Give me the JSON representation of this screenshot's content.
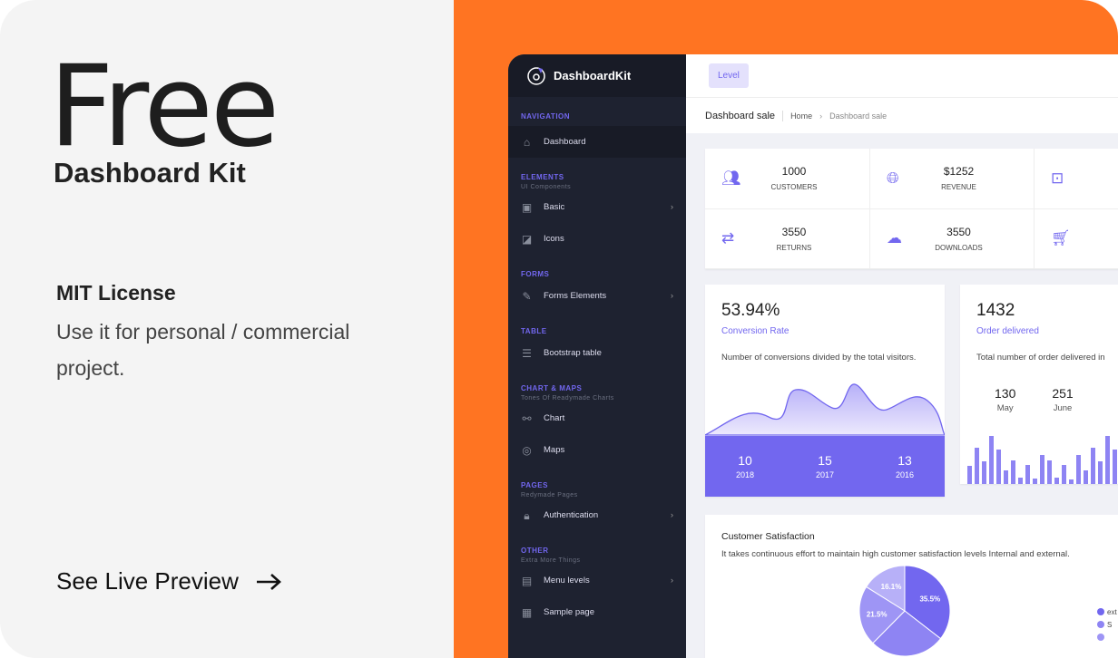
{
  "promo": {
    "title": "Free",
    "subtitle": "Dashboard Kit",
    "license": "MIT License",
    "usage": "Use it for personal / commercial project.",
    "cta": "See Live Preview",
    "cta_icon": "arrow-right-icon"
  },
  "colors": {
    "accent": "#7267ef",
    "orange": "#ff7422",
    "sidebar": "#1e2230"
  },
  "app": {
    "brand": "DashboardKit",
    "level_button": "Level",
    "breadcrumb": {
      "title": "Dashboard sale",
      "home": "Home",
      "current": "Dashboard sale"
    }
  },
  "sidebar": [
    {
      "type": "section",
      "label": "NAVIGATION"
    },
    {
      "type": "item",
      "label": "Dashboard",
      "icon": "home-icon",
      "glyph": "⌂",
      "active": true
    },
    {
      "type": "section",
      "label": "ELEMENTS",
      "caption": "UI Components"
    },
    {
      "type": "item",
      "label": "Basic",
      "icon": "briefcase-icon",
      "glyph": "▣",
      "chevron": true
    },
    {
      "type": "item",
      "label": "Icons",
      "icon": "icons-icon",
      "glyph": "◪"
    },
    {
      "type": "section",
      "label": "FORMS"
    },
    {
      "type": "item",
      "label": "Forms Elements",
      "icon": "pencil-icon",
      "glyph": "✎",
      "chevron": true
    },
    {
      "type": "section",
      "label": "TABLE"
    },
    {
      "type": "item",
      "label": "Bootstrap table",
      "icon": "table-icon",
      "glyph": "☰"
    },
    {
      "type": "section",
      "label": "CHART & MAPS",
      "caption": "Tones Of Readymade Charts"
    },
    {
      "type": "item",
      "label": "Chart",
      "icon": "chart-icon",
      "glyph": "⚯"
    },
    {
      "type": "item",
      "label": "Maps",
      "icon": "target-icon",
      "glyph": "◎"
    },
    {
      "type": "section",
      "label": "PAGES",
      "caption": "Redymade Pages"
    },
    {
      "type": "item",
      "label": "Authentication",
      "icon": "lock-icon",
      "glyph": "🔒︎",
      "chevron": true
    },
    {
      "type": "section",
      "label": "OTHER",
      "caption": "Extra More Things"
    },
    {
      "type": "item",
      "label": "Menu levels",
      "icon": "menu-icon",
      "glyph": "▤",
      "chevron": true
    },
    {
      "type": "item",
      "label": "Sample page",
      "icon": "page-icon",
      "glyph": "▦"
    }
  ],
  "stats": [
    {
      "value": "1000",
      "label": "CUSTOMERS",
      "icon": "users-icon",
      "glyph": "👥︎"
    },
    {
      "value": "$1252",
      "label": "REVENUE",
      "icon": "globe-icon",
      "glyph": "🌐︎"
    },
    {
      "value": "",
      "label": "",
      "icon": "archive-icon",
      "glyph": "⊡"
    },
    {
      "value": "3550",
      "label": "RETURNS",
      "icon": "refresh-icon",
      "glyph": "⇄"
    },
    {
      "value": "3550",
      "label": "DOWNLOADS",
      "icon": "cloud-download-icon",
      "glyph": "☁"
    },
    {
      "value": "",
      "label": "",
      "icon": "cart-icon",
      "glyph": "🛒︎"
    }
  ],
  "conversion": {
    "value": "53.94%",
    "label": "Conversion Rate",
    "desc": "Number of conversions divided by the total visitors.",
    "years": [
      {
        "n": "10",
        "y": "2018"
      },
      {
        "n": "15",
        "y": "2017"
      },
      {
        "n": "13",
        "y": "2016"
      }
    ]
  },
  "orders": {
    "value": "1432",
    "label": "Order delivered",
    "desc": "Total number of order delivered in",
    "months": [
      {
        "n": "130",
        "m": "May"
      },
      {
        "n": "251",
        "m": "June"
      }
    ],
    "bars": [
      20,
      40,
      25,
      53,
      38,
      15,
      26,
      7,
      21,
      6,
      32,
      26,
      7,
      21,
      5,
      32,
      15,
      40,
      25,
      53,
      38
    ]
  },
  "satisfaction": {
    "title": "Customer Satisfaction",
    "desc": "It takes continuous effort to maintain high customer satisfaction levels Internal and external.",
    "slices": [
      {
        "value": 35.5,
        "label": "35.5%",
        "color": "#7267ef"
      },
      {
        "value": 26.9,
        "label": "",
        "color": "#8e84f3"
      },
      {
        "value": 21.5,
        "label": "21.5%",
        "color": "#9e95f5"
      },
      {
        "value": 16.1,
        "label": "16.1%",
        "color": "#b7b0f8"
      }
    ],
    "legend": [
      "ext",
      "S",
      ""
    ]
  }
}
